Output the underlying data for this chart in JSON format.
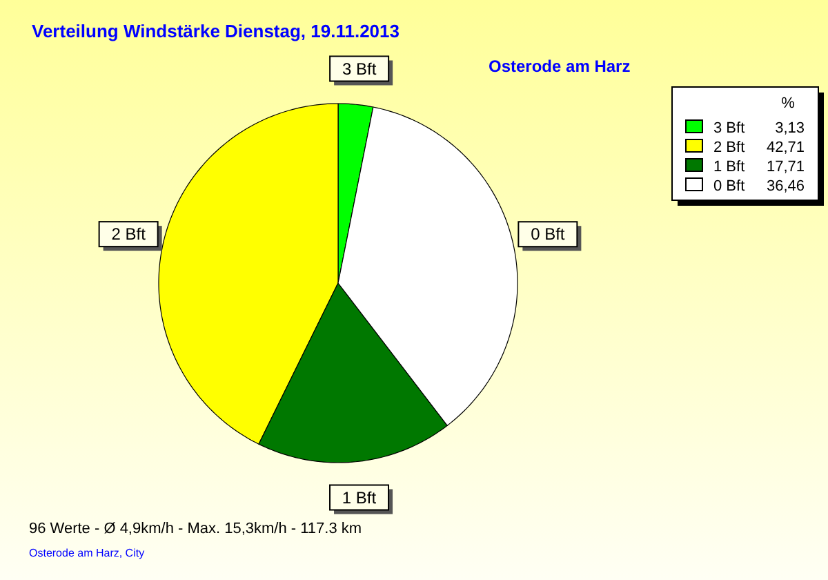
{
  "chart_data": {
    "type": "pie",
    "title": "Verteilung Windstärke  Dienstag, 19.11.2013",
    "subtitle": "Osterode am Harz",
    "legend_title": "%",
    "categories": [
      "3 Bft",
      "2 Bft",
      "1 Bft",
      "0 Bft"
    ],
    "values": [
      3.13,
      42.71,
      17.71,
      36.46
    ],
    "colors": [
      "#00ff00",
      "#ffff00",
      "#007800",
      "#ffffff"
    ],
    "value_labels": [
      "3,13",
      "42,71",
      "17,71",
      "36,46"
    ],
    "legend": "top right",
    "annotations": [
      "96 Werte   -   Ø 4,9km/h  -  Max. 15,3km/h   -   117.3 km",
      "Osterode am Harz, City"
    ]
  }
}
